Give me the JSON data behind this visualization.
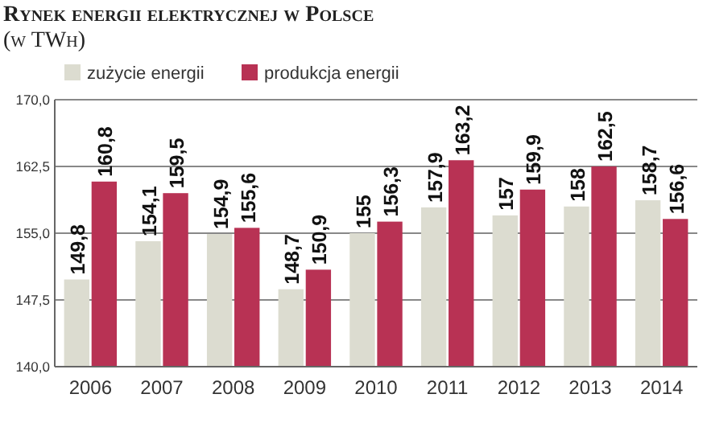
{
  "chart_data": {
    "type": "bar",
    "title": "Rynek energii elektrycznej w Polsce",
    "subtitle": "(w TWh)",
    "categories": [
      "2006",
      "2007",
      "2008",
      "2009",
      "2010",
      "2011",
      "2012",
      "2013",
      "2014"
    ],
    "series": [
      {
        "name": "zużycie energii",
        "color": "#dcdcd0",
        "values": [
          149.8,
          154.1,
          154.9,
          148.7,
          155,
          157.9,
          157,
          158,
          158.7
        ],
        "value_labels": [
          "149,8",
          "154,1",
          "154,9",
          "148,7",
          "155",
          "157,9",
          "157",
          "158",
          "158,7"
        ]
      },
      {
        "name": "produkcja energii",
        "color": "#b83254",
        "values": [
          160.8,
          159.5,
          155.6,
          150.9,
          156.3,
          163.2,
          159.9,
          162.5,
          156.6
        ],
        "value_labels": [
          "160,8",
          "159,5",
          "155,6",
          "150,9",
          "156,3",
          "163,2",
          "159,9",
          "162,5",
          "156,6"
        ]
      }
    ],
    "ylim": [
      140,
      170
    ],
    "yticks": [
      {
        "value": 140,
        "label": "140,0"
      },
      {
        "value": 147.5,
        "label": "147,5"
      },
      {
        "value": 155,
        "label": "155,0"
      },
      {
        "value": 162.5,
        "label": "162,5"
      },
      {
        "value": 170,
        "label": "170,0"
      }
    ],
    "grid": "y",
    "legend": "top left"
  }
}
